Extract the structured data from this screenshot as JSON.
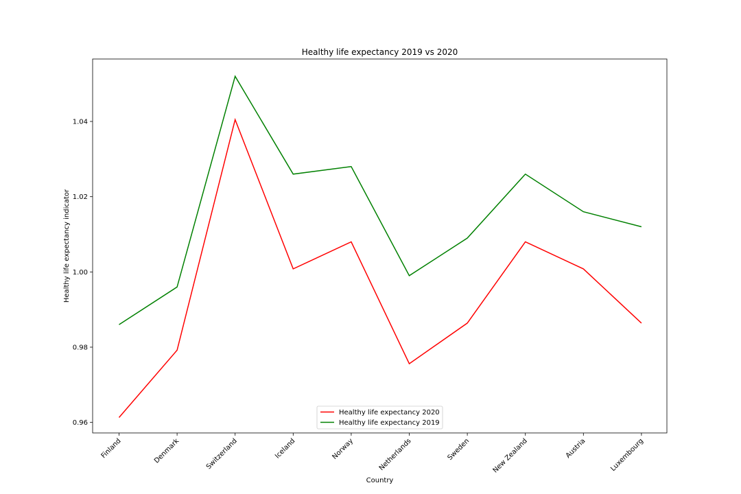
{
  "chart_data": {
    "type": "line",
    "title": "Healthy life expectancy 2019 vs 2020",
    "xlabel": "Country",
    "ylabel": "Healthy life expectancy indicator",
    "categories": [
      "Finland",
      "Denmark",
      "Switzerland",
      "Iceland",
      "Norway",
      "Netherlands",
      "Sweden",
      "New Zealand",
      "Austria",
      "Luxembourg"
    ],
    "series": [
      {
        "name": "Healthy life expectancy 2020",
        "color": "#ff0000",
        "values": [
          0.9613,
          0.9792,
          1.0405,
          1.0008,
          1.008,
          0.9756,
          0.9864,
          1.008,
          1.0008,
          0.9864
        ]
      },
      {
        "name": "Healthy life expectancy 2019",
        "color": "#008000",
        "values": [
          0.986,
          0.996,
          1.052,
          1.026,
          1.028,
          0.999,
          1.009,
          1.026,
          1.016,
          1.012
        ]
      }
    ],
    "ylim": [
      0.9572,
      1.0566
    ],
    "yticks": [
      0.96,
      0.98,
      1.0,
      1.02,
      1.04
    ],
    "ytick_labels": [
      "0.96",
      "0.98",
      "1.00",
      "1.02",
      "1.04"
    ],
    "grid": false,
    "legend_position": "lower-center"
  }
}
